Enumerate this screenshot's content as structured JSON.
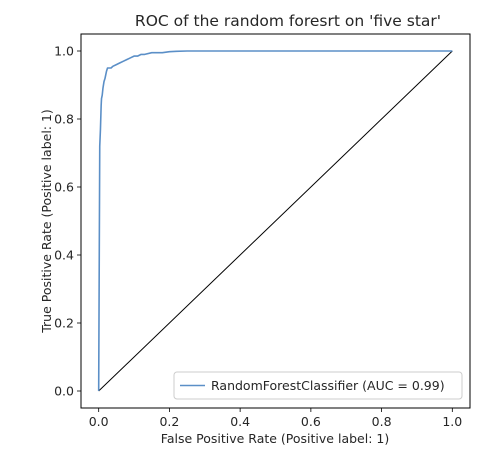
{
  "chart_data": {
    "type": "line",
    "title": "ROC of the random foresrt on 'five star'",
    "xlabel": "False Positive Rate (Positive label: 1)",
    "ylabel": "True Positive Rate (Positive label: 1)",
    "xlim": [
      -0.05,
      1.05
    ],
    "ylim": [
      -0.05,
      1.05
    ],
    "xticks": [
      0.0,
      0.2,
      0.4,
      0.6,
      0.8,
      1.0
    ],
    "yticks": [
      0.0,
      0.2,
      0.4,
      0.6,
      0.8,
      1.0
    ],
    "xtick_labels": [
      "0.0",
      "0.2",
      "0.4",
      "0.6",
      "0.8",
      "1.0"
    ],
    "ytick_labels": [
      "0.0",
      "0.2",
      "0.4",
      "0.6",
      "0.8",
      "1.0"
    ],
    "grid": false,
    "legend": {
      "location": "lower-right",
      "entries": [
        "RandomForestClassifier (AUC = 0.99)"
      ]
    },
    "series": [
      {
        "name": "RandomForestClassifier (AUC = 0.99)",
        "color": "#5b8fc7",
        "x": [
          0.0,
          0.0,
          0.003,
          0.005,
          0.007,
          0.008,
          0.01,
          0.012,
          0.015,
          0.018,
          0.02,
          0.022,
          0.025,
          0.03,
          0.035,
          0.04,
          0.05,
          0.06,
          0.07,
          0.08,
          0.09,
          0.1,
          0.11,
          0.12,
          0.13,
          0.15,
          0.18,
          0.2,
          0.22,
          0.25,
          0.3,
          0.4,
          0.5,
          0.7,
          1.0
        ],
        "y": [
          0.0,
          0.0,
          0.72,
          0.77,
          0.84,
          0.86,
          0.87,
          0.89,
          0.91,
          0.92,
          0.93,
          0.94,
          0.95,
          0.95,
          0.95,
          0.955,
          0.96,
          0.965,
          0.97,
          0.975,
          0.98,
          0.985,
          0.985,
          0.99,
          0.99,
          0.995,
          0.995,
          0.998,
          0.999,
          1.0,
          1.0,
          1.0,
          1.0,
          1.0,
          1.0
        ]
      },
      {
        "name": "",
        "color": "#000000",
        "x": [
          0.0,
          1.0
        ],
        "y": [
          0.0,
          1.0
        ]
      }
    ]
  }
}
